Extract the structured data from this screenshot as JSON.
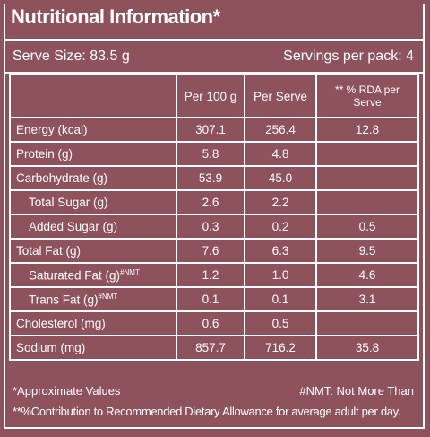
{
  "title": "Nutritional Information*",
  "serve_size": "Serve Size: 83.5 g",
  "servings": "Servings per pack: 4",
  "table": {
    "header": [
      "Per 100 g",
      "Per Serve",
      "** % RDA per Serve"
    ],
    "rows": [
      {
        "label": "Energy (kcal)",
        "per_100g": "307.1",
        "per_serve": "256.4",
        "rda": "12.8"
      },
      {
        "label": "Protein (g)",
        "per_100g": "5.8",
        "per_serve": "4.8"
      },
      {
        "label": "Carbohydrate (g)",
        "per_100g": "53.9",
        "per_serve": "45.0"
      },
      {
        "label": "Total Sugar (g)",
        "per_100g": "2.6",
        "per_serve": "2.2",
        "indent": true
      },
      {
        "label": "Added Sugar (g)",
        "per_100g": "0.3",
        "per_serve": "0.2",
        "rda": "0.5",
        "indent": true
      },
      {
        "label": "Total Fat (g)",
        "per_100g": "7.6",
        "per_serve": "6.3",
        "rda": "9.5"
      },
      {
        "label": "Saturated Fat (g)",
        "note": "#NMT",
        "per_100g": "1.2",
        "per_serve": "1.0",
        "rda": "4.6",
        "indent": true
      },
      {
        "label": "Trans Fat (g)",
        "note": "#NMT",
        "per_100g": "0.1",
        "per_serve": "0.1",
        "rda": "3.1",
        "indent": true
      },
      {
        "label": "Cholesterol (mg)",
        "per_100g": "0.6",
        "per_serve": "0.5"
      },
      {
        "label": "Sodium (mg)",
        "per_100g": "857.7",
        "per_serve": "716.2",
        "rda": "35.8"
      }
    ]
  },
  "footnotes": {
    "approx": "*Approximate  Values",
    "nmt": "#NMT:  Not  More  Than",
    "rda": "**%Contribution to Recommended Dietary Allowance for average adult per day."
  }
}
